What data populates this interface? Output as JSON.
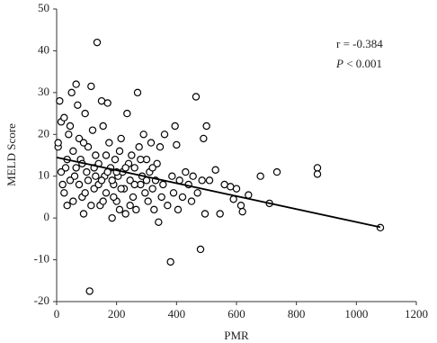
{
  "chart_data": {
    "type": "scatter",
    "x_label": "PMR",
    "y_label": "MELD Score",
    "annotation_r": "r = -0.384",
    "annotation_p_symbol": "P",
    "annotation_p_text": "< 0.001",
    "xlim": [
      0,
      1200
    ],
    "xticks": [
      0,
      200,
      400,
      600,
      800,
      1000,
      1200
    ],
    "ylim": [
      -20,
      50
    ],
    "yticks": [
      -20,
      -10,
      0,
      10,
      20,
      30,
      40,
      50
    ],
    "grid": false,
    "marker_color": "#000000",
    "x": [
      5,
      5,
      10,
      15,
      20,
      25,
      30,
      35,
      40,
      45,
      50,
      55,
      60,
      65,
      70,
      75,
      80,
      85,
      90,
      95,
      100,
      105,
      110,
      115,
      120,
      125,
      130,
      135,
      140,
      145,
      150,
      155,
      160,
      165,
      170,
      175,
      180,
      185,
      190,
      195,
      200,
      205,
      210,
      215,
      220,
      225,
      230,
      235,
      240,
      245,
      250,
      255,
      260,
      265,
      270,
      275,
      280,
      285,
      290,
      295,
      300,
      305,
      310,
      315,
      320,
      325,
      330,
      335,
      340,
      345,
      350,
      355,
      360,
      370,
      380,
      385,
      390,
      395,
      400,
      405,
      410,
      420,
      430,
      440,
      450,
      455,
      465,
      470,
      480,
      485,
      490,
      495,
      500,
      510,
      530,
      545,
      560,
      580,
      590,
      600,
      615,
      620,
      640,
      680,
      710,
      735,
      870,
      870,
      1080,
      15,
      25,
      35,
      45,
      55,
      65,
      75,
      85,
      95,
      105,
      115,
      125,
      140,
      155,
      165,
      185,
      200,
      215,
      230,
      245,
      260,
      280,
      300,
      320,
      150,
      170,
      190,
      210,
      130,
      90
    ],
    "values": [
      17,
      18,
      28,
      23,
      8,
      24,
      12,
      3,
      20,
      22,
      30,
      16,
      10,
      32,
      27,
      19,
      14,
      5,
      1,
      25,
      11,
      9,
      -17.5,
      31.5,
      21,
      7,
      15,
      42,
      13,
      3,
      28,
      22,
      10,
      6,
      27.5,
      18,
      12,
      0,
      8,
      14,
      4,
      10,
      16,
      19,
      11,
      7,
      1,
      25,
      13,
      9,
      15,
      5,
      12,
      2,
      30,
      17,
      8,
      10,
      20,
      6,
      14,
      4,
      11,
      18,
      7,
      2,
      9,
      13,
      -1,
      17,
      5,
      8,
      20,
      3,
      -10.5,
      10,
      6,
      22,
      17.5,
      2,
      9,
      5,
      11,
      8,
      4,
      10,
      29,
      6,
      -7.5,
      9,
      19,
      1,
      22,
      9,
      11.5,
      1,
      8,
      7.5,
      4.5,
      7,
      3,
      1.5,
      5.5,
      10,
      3.5,
      11,
      12,
      10.5,
      -2.3,
      11,
      6,
      14,
      9,
      4,
      12,
      8,
      13,
      6,
      17,
      3,
      12,
      8,
      4,
      15,
      9,
      11,
      7,
      12,
      3,
      8,
      14,
      9,
      12,
      9,
      11,
      5,
      2,
      10,
      18
    ],
    "trend_line": {
      "x": [
        0,
        1080
      ],
      "values": [
        14.5,
        -2.2
      ],
      "color": "#000000"
    }
  }
}
